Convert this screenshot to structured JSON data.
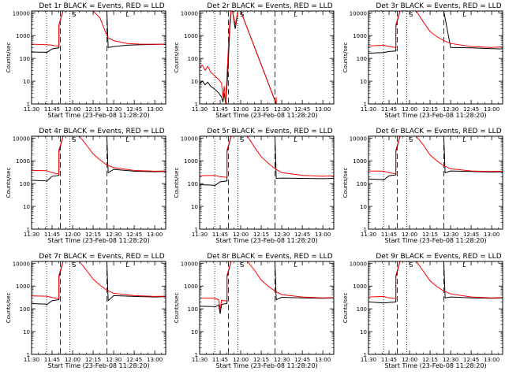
{
  "common": {
    "xlabel": "Start Time (23-Feb-08 11:28:20)",
    "ylabel": "Counts/sec",
    "xticks": [
      "11:30",
      "11:45",
      "12:00",
      "12:15",
      "12:30",
      "12:45",
      "13:00"
    ],
    "yticks": [
      "1",
      "10",
      "100",
      "1000",
      "10000"
    ],
    "colors": {
      "events": "#000000",
      "lld": "#ff0000",
      "frame": "#000000",
      "background": "#ffffff"
    },
    "markers": {
      "dotted": [
        "11:41",
        "11:58"
      ],
      "dashed": [
        "11:51",
        "12:25"
      ],
      "s_label": "S",
      "l_label": "L"
    }
  },
  "chart_data": [
    {
      "type": "line",
      "title": "Det 1r BLACK = Events, RED = LLD",
      "xlim": [
        "11:30",
        "13:08"
      ],
      "ylim": [
        1,
        12000
      ],
      "yscale": "log",
      "grid": false,
      "series": [
        {
          "color": "black",
          "x": [
            "11:30",
            "11:41",
            "11:41",
            "11:45",
            "11:47",
            "11:49",
            "11:50",
            "11:50",
            "11:53",
            "12:00",
            "12:05",
            "12:10",
            "12:15",
            "12:20",
            "12:25",
            "12:26",
            "12:30",
            "12:40",
            "12:50",
            "13:00",
            "13:08"
          ],
          "values": [
            190,
            185,
            180,
            260,
            275,
            285,
            290,
            3000,
            12000,
            12000,
            12000,
            12000,
            12000,
            12000,
            12000,
            300,
            330,
            380,
            400,
            410,
            420
          ]
        },
        {
          "color": "red",
          "x": [
            "11:30",
            "11:41",
            "11:45",
            "11:47",
            "11:49",
            "11:50",
            "11:50",
            "11:53",
            "12:00",
            "12:05",
            "12:10",
            "12:15",
            "12:20",
            "12:25",
            "12:26",
            "12:30",
            "12:40",
            "12:50",
            "13:00",
            "13:08"
          ],
          "values": [
            420,
            400,
            380,
            360,
            350,
            345,
            3000,
            12000,
            12000,
            12000,
            12000,
            12000,
            6000,
            1000,
            800,
            600,
            450,
            420,
            420,
            420
          ]
        }
      ]
    },
    {
      "type": "line",
      "title": "Det 2r BLACK = Events, RED = LLD",
      "xlim": [
        "11:30",
        "13:08"
      ],
      "ylim": [
        1,
        12000
      ],
      "yscale": "log",
      "grid": false,
      "series": [
        {
          "color": "black",
          "x": [
            "11:30",
            "11:32",
            "11:34",
            "11:36",
            "11:38",
            "11:40",
            "11:42",
            "11:44",
            "11:46",
            "11:47",
            "11:48",
            "11:49",
            "11:50",
            "11:51",
            "11:52",
            "11:53",
            "11:54",
            "11:56",
            "11:58",
            "12:00",
            "12:26",
            "12:26",
            "12:26"
          ],
          "values": [
            8,
            10,
            7,
            9,
            6,
            5,
            4,
            3,
            2,
            1.2,
            3,
            1,
            6,
            80,
            2000,
            12000,
            12000,
            2000,
            12000,
            12000,
            1,
            1.5,
            1
          ]
        },
        {
          "color": "red",
          "x": [
            "11:30",
            "11:32",
            "11:34",
            "11:36",
            "11:38",
            "11:40",
            "11:42",
            "11:44",
            "11:46",
            "11:47",
            "11:48",
            "11:49",
            "11:50",
            "11:51",
            "11:52",
            "11:53",
            "11:54",
            "11:56",
            "11:58",
            "12:00",
            "12:26",
            "12:26",
            "12:26"
          ],
          "values": [
            40,
            50,
            30,
            45,
            25,
            20,
            15,
            12,
            8,
            2,
            6,
            1,
            20,
            300,
            4000,
            12000,
            12000,
            3000,
            12000,
            12000,
            1,
            2,
            1
          ]
        }
      ]
    },
    {
      "type": "line",
      "title": "Det 3r BLACK = Events, RED = LLD",
      "xlim": [
        "11:30",
        "13:08"
      ],
      "ylim": [
        1,
        12000
      ],
      "yscale": "log",
      "grid": false,
      "series": [
        {
          "color": "black",
          "x": [
            "11:30",
            "11:41",
            "11:45",
            "11:50",
            "11:50",
            "11:53",
            "12:00",
            "12:05",
            "12:15",
            "12:22",
            "12:25",
            "12:30",
            "12:45",
            "13:00",
            "13:08"
          ],
          "values": [
            170,
            180,
            200,
            210,
            2500,
            12000,
            12000,
            12000,
            12000,
            12000,
            12000,
            300,
            290,
            270,
            260
          ]
        },
        {
          "color": "red",
          "x": [
            "11:30",
            "11:41",
            "11:45",
            "11:50",
            "11:50",
            "11:53",
            "12:00",
            "12:05",
            "12:10",
            "12:15",
            "12:20",
            "12:25",
            "12:30",
            "12:45",
            "13:00",
            "13:08"
          ],
          "values": [
            350,
            380,
            330,
            300,
            3000,
            12000,
            12000,
            12000,
            4000,
            1500,
            900,
            600,
            450,
            330,
            300,
            320
          ]
        }
      ]
    },
    {
      "type": "line",
      "title": "Det 4r BLACK = Events, RED = LLD",
      "xlim": [
        "11:30",
        "13:08"
      ],
      "ylim": [
        1,
        12000
      ],
      "yscale": "log",
      "grid": false,
      "series": [
        {
          "color": "black",
          "x": [
            "11:30",
            "11:41",
            "11:41",
            "11:45",
            "11:50",
            "11:50",
            "11:53",
            "12:00",
            "12:10",
            "12:20",
            "12:25",
            "12:26",
            "12:30",
            "12:45",
            "13:00",
            "13:08"
          ],
          "values": [
            140,
            130,
            125,
            210,
            230,
            2500,
            12000,
            12000,
            12000,
            12000,
            12000,
            300,
            420,
            350,
            330,
            340
          ]
        },
        {
          "color": "red",
          "x": [
            "11:30",
            "11:41",
            "11:45",
            "11:50",
            "11:50",
            "11:53",
            "12:00",
            "12:05",
            "12:10",
            "12:15",
            "12:20",
            "12:25",
            "12:30",
            "12:45",
            "13:00",
            "13:08"
          ],
          "values": [
            380,
            370,
            300,
            260,
            3000,
            12000,
            12000,
            12000,
            5000,
            2000,
            1100,
            650,
            500,
            380,
            350,
            360
          ]
        }
      ]
    },
    {
      "type": "line",
      "title": "Det 5r BLACK = Events, RED = LLD",
      "xlim": [
        "11:30",
        "13:08"
      ],
      "ylim": [
        1,
        12000
      ],
      "yscale": "log",
      "grid": false,
      "series": [
        {
          "color": "black",
          "x": [
            "11:30",
            "11:41",
            "11:41",
            "11:45",
            "11:50",
            "11:50",
            "11:53",
            "12:00",
            "12:10",
            "12:20",
            "12:25",
            "12:26",
            "12:30",
            "12:45",
            "13:00",
            "13:08"
          ],
          "values": [
            90,
            85,
            80,
            120,
            130,
            2500,
            12000,
            12000,
            12000,
            12000,
            12000,
            170,
            175,
            170,
            165,
            170
          ]
        },
        {
          "color": "red",
          "x": [
            "11:30",
            "11:41",
            "11:45",
            "11:50",
            "11:50",
            "11:53",
            "12:00",
            "12:05",
            "12:10",
            "12:15",
            "12:20",
            "12:25",
            "12:30",
            "12:45",
            "13:00",
            "13:08"
          ],
          "values": [
            220,
            230,
            200,
            190,
            3000,
            12000,
            12000,
            12000,
            4000,
            1500,
            800,
            450,
            300,
            230,
            210,
            220
          ]
        }
      ]
    },
    {
      "type": "line",
      "title": "Det 6r BLACK = Events, RED = LLD",
      "xlim": [
        "11:30",
        "13:08"
      ],
      "ylim": [
        1,
        12000
      ],
      "yscale": "log",
      "grid": false,
      "series": [
        {
          "color": "black",
          "x": [
            "11:30",
            "11:41",
            "11:41",
            "11:45",
            "11:50",
            "11:50",
            "11:53",
            "12:00",
            "12:10",
            "12:20",
            "12:25",
            "12:26",
            "12:30",
            "12:45",
            "13:00",
            "13:08"
          ],
          "values": [
            160,
            150,
            145,
            220,
            240,
            2500,
            12000,
            12000,
            12000,
            12000,
            12000,
            300,
            360,
            340,
            320,
            330
          ]
        },
        {
          "color": "red",
          "x": [
            "11:30",
            "11:41",
            "11:45",
            "11:50",
            "11:50",
            "11:53",
            "12:00",
            "12:05",
            "12:10",
            "12:15",
            "12:20",
            "12:25",
            "12:30",
            "12:45",
            "13:00",
            "13:08"
          ],
          "values": [
            360,
            350,
            300,
            270,
            3000,
            12000,
            12000,
            12000,
            5000,
            1800,
            1000,
            600,
            450,
            360,
            340,
            350
          ]
        }
      ]
    },
    {
      "type": "line",
      "title": "Det 7r BLACK = Events, RED = LLD",
      "xlim": [
        "11:30",
        "13:08"
      ],
      "ylim": [
        1,
        12000
      ],
      "yscale": "log",
      "grid": false,
      "series": [
        {
          "color": "black",
          "x": [
            "11:30",
            "11:41",
            "11:41",
            "11:45",
            "11:50",
            "11:50",
            "11:53",
            "12:00",
            "12:10",
            "12:20",
            "12:25",
            "12:26",
            "12:30",
            "12:45",
            "13:00",
            "13:08"
          ],
          "values": [
            170,
            160,
            150,
            230,
            250,
            2500,
            12000,
            12000,
            12000,
            12000,
            12000,
            230,
            380,
            350,
            330,
            340
          ]
        },
        {
          "color": "red",
          "x": [
            "11:30",
            "11:41",
            "11:45",
            "11:50",
            "11:50",
            "11:53",
            "12:00",
            "12:05",
            "12:10",
            "12:15",
            "12:20",
            "12:25",
            "12:30",
            "12:45",
            "13:00",
            "13:08"
          ],
          "values": [
            370,
            360,
            310,
            280,
            3000,
            12000,
            12000,
            12000,
            5000,
            2000,
            1100,
            650,
            480,
            380,
            350,
            360
          ]
        }
      ]
    },
    {
      "type": "line",
      "title": "Det 8r BLACK = Events, RED = LLD",
      "xlim": [
        "11:30",
        "13:08"
      ],
      "ylim": [
        1,
        12000
      ],
      "yscale": "log",
      "grid": false,
      "series": [
        {
          "color": "black",
          "x": [
            "11:30",
            "11:41",
            "11:41",
            "11:44",
            "11:45",
            "11:46",
            "11:47",
            "11:50",
            "11:50",
            "11:53",
            "12:00",
            "12:10",
            "12:20",
            "12:25",
            "12:26",
            "12:30",
            "12:45",
            "13:00",
            "13:08"
          ],
          "values": [
            130,
            125,
            120,
            150,
            60,
            150,
            160,
            170,
            2500,
            12000,
            12000,
            12000,
            12000,
            12000,
            250,
            320,
            300,
            290,
            300
          ]
        },
        {
          "color": "red",
          "x": [
            "11:30",
            "11:41",
            "11:44",
            "11:45",
            "11:46",
            "11:47",
            "11:50",
            "11:50",
            "11:53",
            "12:00",
            "12:05",
            "12:10",
            "12:15",
            "12:20",
            "12:25",
            "12:30",
            "12:45",
            "13:00",
            "13:08"
          ],
          "values": [
            300,
            290,
            250,
            90,
            240,
            230,
            220,
            3000,
            12000,
            12000,
            12000,
            5000,
            1800,
            1000,
            600,
            420,
            330,
            300,
            310
          ]
        }
      ]
    },
    {
      "type": "line",
      "title": "Det 9r BLACK = Events, RED = LLD",
      "xlim": [
        "11:30",
        "13:08"
      ],
      "ylim": [
        1,
        12000
      ],
      "yscale": "log",
      "grid": false,
      "series": [
        {
          "color": "black",
          "x": [
            "11:30",
            "11:41",
            "11:45",
            "11:50",
            "11:50",
            "11:53",
            "12:00",
            "12:10",
            "12:20",
            "12:25",
            "12:26",
            "12:30",
            "12:45",
            "13:00",
            "13:08"
          ],
          "values": [
            200,
            180,
            190,
            200,
            2500,
            12000,
            12000,
            12000,
            12000,
            12000,
            300,
            330,
            300,
            290,
            300
          ]
        },
        {
          "color": "red",
          "x": [
            "11:30",
            "11:41",
            "11:45",
            "11:50",
            "11:50",
            "11:53",
            "12:00",
            "12:05",
            "12:10",
            "12:15",
            "12:20",
            "12:25",
            "12:30",
            "12:45",
            "13:00",
            "13:08"
          ],
          "values": [
            330,
            350,
            300,
            280,
            3000,
            12000,
            12000,
            12000,
            4500,
            1700,
            950,
            600,
            450,
            330,
            300,
            310
          ]
        }
      ]
    }
  ]
}
